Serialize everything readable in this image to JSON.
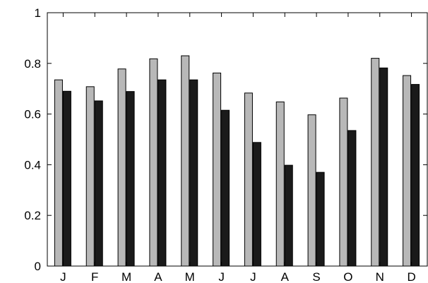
{
  "chart_data": {
    "type": "bar",
    "categories": [
      "J",
      "F",
      "M",
      "A",
      "M",
      "J",
      "J",
      "A",
      "S",
      "O",
      "N",
      "D"
    ],
    "series": [
      {
        "color": "#b8b8b8",
        "values": [
          0.735,
          0.708,
          0.778,
          0.818,
          0.83,
          0.762,
          0.683,
          0.648,
          0.597,
          0.663,
          0.82,
          0.752
        ]
      },
      {
        "color": "#1a1a1a",
        "values": [
          0.69,
          0.652,
          0.689,
          0.735,
          0.735,
          0.615,
          0.488,
          0.398,
          0.37,
          0.535,
          0.782,
          0.717
        ]
      }
    ],
    "ylim": [
      0,
      1
    ],
    "yticks": [
      "0",
      "0.2",
      "0.4",
      "0.6",
      "0.8",
      "1"
    ],
    "title": "",
    "xlabel": "",
    "ylabel": "",
    "grid": false,
    "legend": "none"
  }
}
